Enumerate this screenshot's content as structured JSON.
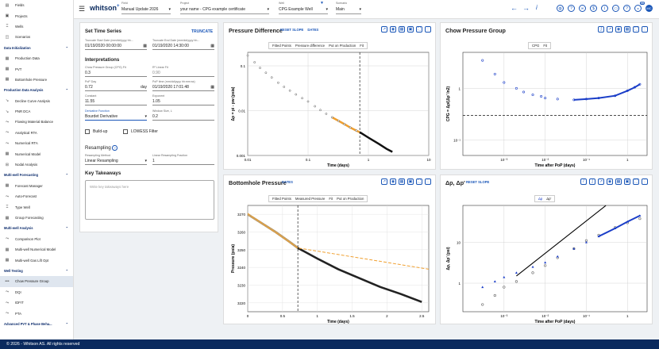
{
  "sidebar": {
    "items": [
      {
        "type": "item",
        "label": "Fields",
        "icon": "fields-icon",
        "glyph": "▤"
      },
      {
        "type": "item",
        "label": "Projects",
        "icon": "projects-icon",
        "glyph": "▣"
      },
      {
        "type": "item",
        "label": "Wells",
        "icon": "wells-icon",
        "glyph": "⌶"
      },
      {
        "type": "item",
        "label": "Scenarios",
        "icon": "scenarios-icon",
        "glyph": "◫"
      },
      {
        "type": "section",
        "label": "Data Initialization"
      },
      {
        "type": "item",
        "label": "Production Data",
        "icon": "production-data-icon",
        "glyph": "▦"
      },
      {
        "type": "item",
        "label": "PVT",
        "icon": "pvt-icon",
        "glyph": "▦"
      },
      {
        "type": "item",
        "label": "Bottomhole Pressure",
        "icon": "bottomhole-pressure-icon",
        "glyph": "▦"
      },
      {
        "type": "section",
        "label": "Production Data Analysis"
      },
      {
        "type": "item",
        "label": "Decline Curve Analysis",
        "icon": "decline-curve-icon",
        "glyph": "↘"
      },
      {
        "type": "item",
        "label": "PNR DCA",
        "icon": "pnr-dca-icon",
        "glyph": "↘"
      },
      {
        "type": "item",
        "label": "Flowing Material Balance",
        "icon": "fmb-icon",
        "glyph": "⤳"
      },
      {
        "type": "item",
        "label": "Analytical RTA",
        "icon": "analytical-rta-icon",
        "glyph": "⤳"
      },
      {
        "type": "item",
        "label": "Numerical RTA",
        "icon": "numerical-rta-icon",
        "glyph": "⤳"
      },
      {
        "type": "item",
        "label": "Numerical Model",
        "icon": "numerical-model-icon",
        "glyph": "▦"
      },
      {
        "type": "item",
        "label": "Nodal Analysis",
        "icon": "nodal-analysis-icon",
        "glyph": "⊞"
      },
      {
        "type": "section",
        "label": "Multi-well Forecasting"
      },
      {
        "type": "item",
        "label": "Forecast Manager",
        "icon": "forecast-manager-icon",
        "glyph": "▦"
      },
      {
        "type": "item",
        "label": "Auto-Forecast",
        "icon": "auto-forecast-icon",
        "glyph": "⤳"
      },
      {
        "type": "item",
        "label": "Type Well",
        "icon": "type-well-icon",
        "glyph": "⌶"
      },
      {
        "type": "item",
        "label": "Group Forecasting",
        "icon": "group-forecasting-icon",
        "glyph": "▦"
      },
      {
        "type": "section",
        "label": "Multi-well Analysis"
      },
      {
        "type": "item",
        "label": "Comparison Plot",
        "icon": "comparison-plot-icon",
        "glyph": "⤳"
      },
      {
        "type": "item",
        "label": "Multi-well Numerical Model",
        "icon": "multiwell-numerical-icon",
        "glyph": "▦"
      },
      {
        "type": "item",
        "label": "Multi-well Gas Lift Opt",
        "icon": "gas-lift-icon",
        "glyph": "▦"
      },
      {
        "type": "section",
        "label": "Well Testing"
      },
      {
        "type": "item",
        "label": "Chow Pressure Group",
        "icon": "chow-pressure-icon",
        "glyph": "•••",
        "active": true
      },
      {
        "type": "item",
        "label": "DQI",
        "icon": "dqi-icon",
        "glyph": "⤳"
      },
      {
        "type": "item",
        "label": "IDFIT",
        "icon": "idfit-icon",
        "glyph": "⤳"
      },
      {
        "type": "item",
        "label": "PTA",
        "icon": "pta-icon",
        "glyph": "⤳"
      },
      {
        "type": "section",
        "label": "Advanced PVT & Phase Beha..."
      }
    ]
  },
  "topbar": {
    "logo": "whitson",
    "logo_sup": "+",
    "field": {
      "label": "Field",
      "value": "Manual Update 2026"
    },
    "project": {
      "label": "Project",
      "value": "your name - CPG example certificate"
    },
    "well": {
      "label": "Well",
      "value": "CPG Example Well"
    },
    "scenario": {
      "label": "Scenario",
      "value": "Main"
    },
    "badge": "99",
    "avatar": "MC"
  },
  "settings": {
    "title": "Set Time Series",
    "truncate": "TRUNCATE",
    "start_label": "Truncate Start Date (mm/dd/yyyy hh...",
    "start_value": "01/19/2020 00:00:00",
    "end_label": "Truncate End Date (mm/dd/yyyy hh...",
    "end_value": "01/19/2020 14:30:00",
    "interp_title": "Interpretations",
    "cpg_label": "Chow Pressure Group (CPG) Fit",
    "cpg_value": "0.3",
    "r2_label": "R² Linear Fit",
    "r2_value": "0.90",
    "pop_label": "PoP Day",
    "pop_value": "0.72",
    "pop_unit": "day",
    "poptime_label": "PoP time (mm/dd/yyyy hh:mm:ss)",
    "poptime_value": "01/19/2020 17:01:48",
    "constant_label": "Constant",
    "constant_value": "11.55",
    "exponent_label": "Exponent",
    "exponent_value": "1.05",
    "deriv_label": "Derivative Function",
    "deriv_value": "Bourdet Derivative",
    "window_label": "Window Size, L",
    "window_value": "0.2",
    "buildup": "Build-up",
    "lowess": "LOWESS Filter",
    "resampling_title": "Resampling",
    "method_label": "Resampling Method",
    "method_value": "Linear Resampling",
    "fraction_label": "Linear Resampling Fraction",
    "fraction_value": "1",
    "takeaways_title": "Key Takeaways",
    "takeaways_placeholder": "Write key takeaways here"
  },
  "panels": {
    "pd": {
      "title": "Pressure Difference",
      "links": [
        "RESET SLOPE",
        "DATES"
      ]
    },
    "cpg": {
      "title": "Chow Pressure Group"
    },
    "bhp": {
      "title": "Bottomhole Pressure",
      "links": [
        "DATES"
      ]
    },
    "dp": {
      "title": "Δp, Δp'",
      "links": [
        "RESET SLOPE"
      ]
    }
  },
  "legends": {
    "pd": [
      "Fitted Points",
      "Pressure difference",
      "Put on Production",
      "Fit"
    ],
    "cpg": [
      "CPG",
      "Fit"
    ],
    "bhp": [
      "Fitted Points",
      "Measured Pressure",
      "Fit",
      "Put on Production"
    ],
    "dp": [
      "Δp",
      "Δp'"
    ]
  },
  "footer": "© 2026 - Whitson AS. All rights reserved",
  "chart_data": [
    {
      "type": "scatter",
      "title": "Pressure Difference",
      "xlabel": "Time (days)",
      "ylabel": "Δp = pi - pw (psia)",
      "x_scale": "log",
      "y_scale": "log",
      "xlim": [
        0.01,
        10
      ],
      "series": [
        {
          "name": "Pressure difference",
          "x": [
            0.01,
            0.013,
            0.016,
            0.02,
            0.025,
            0.032,
            0.04,
            0.05,
            0.063,
            0.08,
            0.1,
            0.13,
            0.16,
            0.2,
            0.25,
            0.32,
            0.4,
            0.5,
            0.63,
            0.72,
            1,
            1.5,
            2,
            2.5
          ],
          "y": [
            0.17,
            0.12,
            0.09,
            0.07,
            0.055,
            0.042,
            0.034,
            0.028,
            0.023,
            0.019,
            0.016,
            0.0125,
            0.0103,
            0.0085,
            0.0071,
            0.0059,
            0.005,
            0.0042,
            0.0036,
            0.0033,
            0.0025,
            0.0018,
            0.0014,
            0.0012
          ]
        }
      ],
      "annotations": {
        "put_on_production_x": 0.72
      }
    },
    {
      "type": "line",
      "title": "Chow Pressure Group",
      "xlabel": "Time after PoP (days)",
      "ylabel": "CPG = Δp/(Δp' ln2)",
      "x_scale": "log",
      "y_scale": "log",
      "series": [
        {
          "name": "CPG",
          "x": [
            0.0003,
            0.0006,
            0.001,
            0.002,
            0.003,
            0.005,
            0.008,
            0.01,
            0.02,
            0.05,
            0.1,
            0.2,
            0.5,
            1,
            1.5,
            2
          ],
          "y": [
            3.5,
            1.9,
            1.3,
            1.0,
            0.85,
            0.75,
            0.7,
            0.65,
            0.62,
            0.6,
            0.62,
            0.65,
            0.72,
            0.9,
            1.05,
            1.2
          ]
        },
        {
          "name": "Fit",
          "x": [
            0.0001,
            3
          ],
          "y": [
            0.3,
            0.3
          ]
        }
      ]
    },
    {
      "type": "line",
      "title": "Bottomhole Pressure",
      "xlabel": "Time (days)",
      "ylabel": "Pressure (psia)",
      "ylim": [
        3215,
        3275
      ],
      "xlim": [
        0,
        2.6
      ],
      "series": [
        {
          "name": "Measured Pressure",
          "x": [
            0,
            0.2,
            0.4,
            0.6,
            0.72,
            1.0,
            1.3,
            1.6,
            1.9,
            2.2,
            2.5
          ],
          "y": [
            3270,
            3265,
            3260,
            3254.5,
            3251,
            3245,
            3239,
            3234,
            3229,
            3225,
            3220.5
          ]
        },
        {
          "name": "Fit",
          "x": [
            0,
            0.72,
            2.6
          ],
          "y": [
            3270.5,
            3251,
            3239
          ]
        }
      ],
      "annotations": {
        "put_on_production_x": 0.72
      }
    },
    {
      "type": "scatter",
      "title": "Δp, Δp'",
      "xlabel": "Time after PoP (days)",
      "ylabel": "Δp, Δp' (psi)",
      "x_scale": "log",
      "y_scale": "log",
      "series": [
        {
          "name": "Δp",
          "x": [
            0.0003,
            0.0006,
            0.001,
            0.002,
            0.005,
            0.01,
            0.02,
            0.05,
            0.1,
            0.2,
            0.5,
            1,
            2
          ],
          "y": [
            0.8,
            1.1,
            1.4,
            1.8,
            2.5,
            3.2,
            4.5,
            7,
            10,
            14,
            22,
            32,
            45
          ]
        },
        {
          "name": "Δp'",
          "x": [
            0.0003,
            0.0006,
            0.001,
            0.002,
            0.005,
            0.01,
            0.02,
            0.05,
            0.1,
            0.2,
            0.5,
            1,
            2
          ],
          "y": [
            0.3,
            0.5,
            0.8,
            1.1,
            1.8,
            2.7,
            4.2,
            7,
            11,
            15,
            23,
            30,
            38
          ]
        }
      ]
    }
  ]
}
